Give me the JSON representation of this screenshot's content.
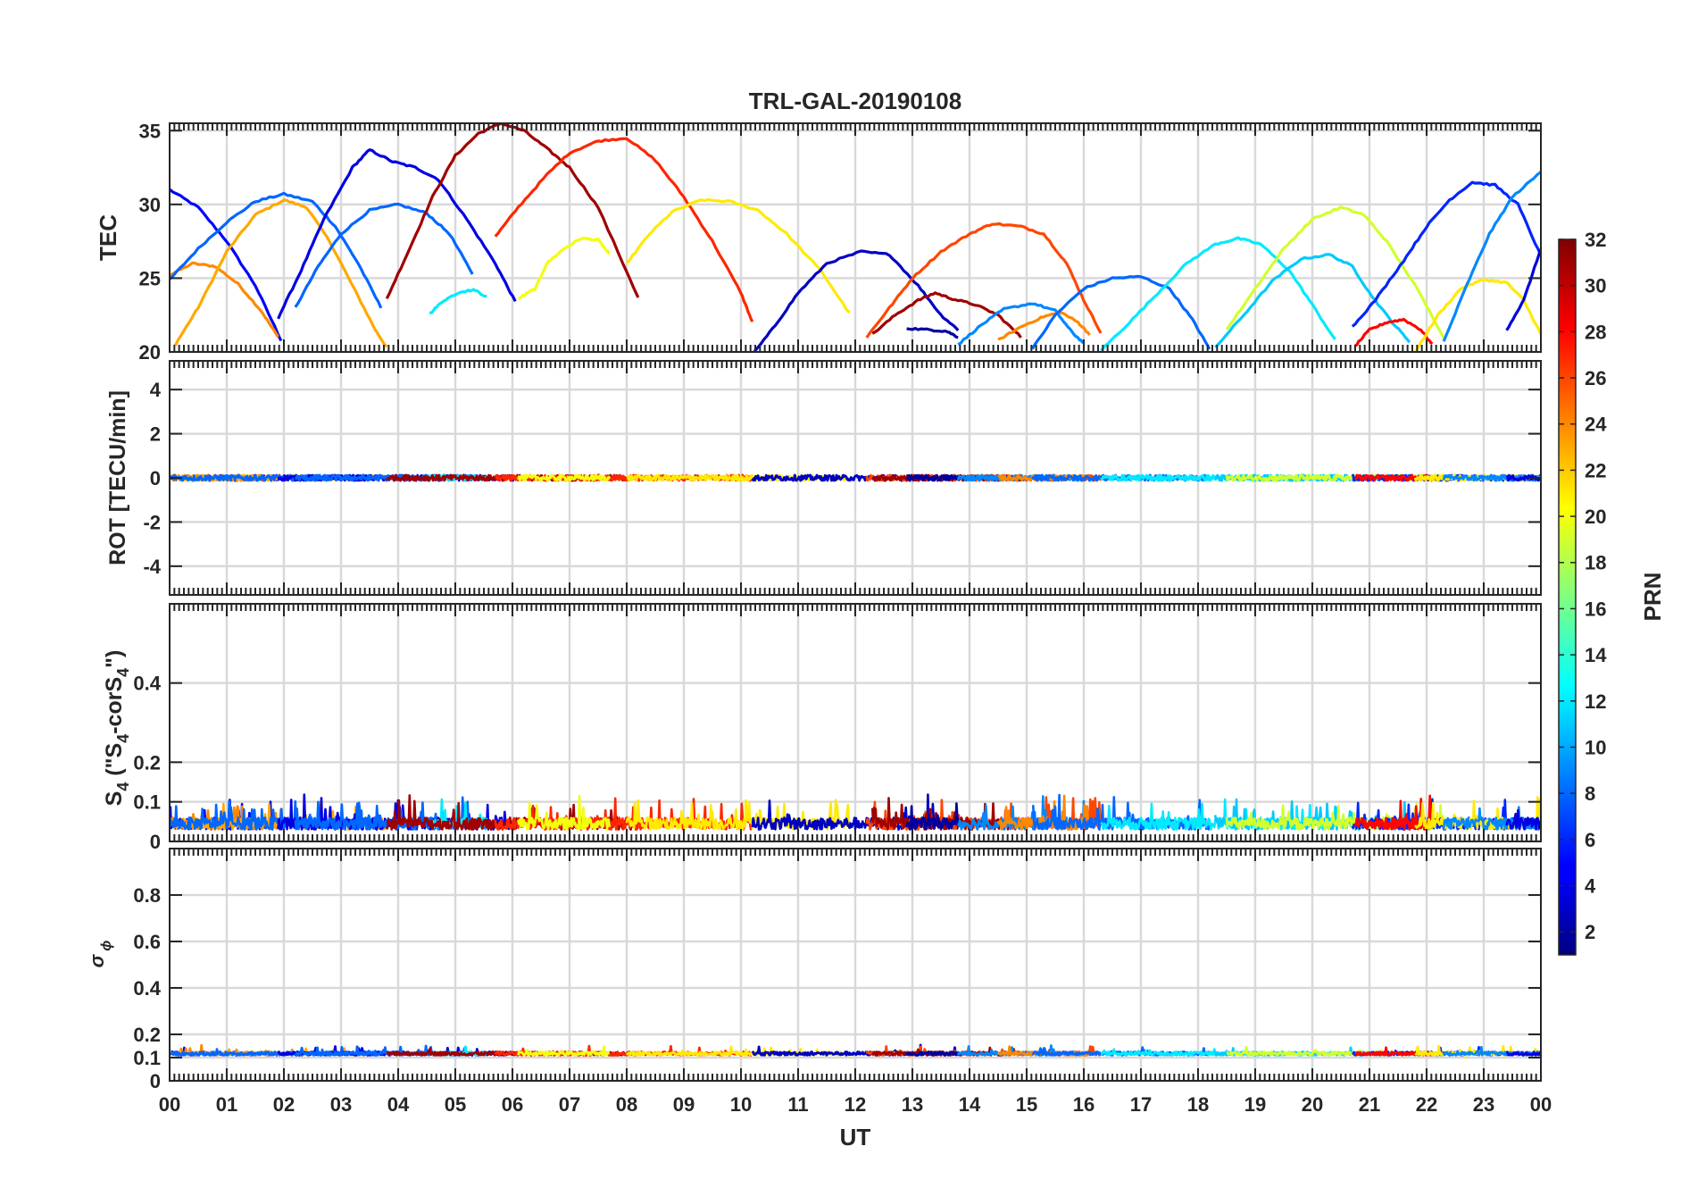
{
  "chart_data": {
    "title": "TRL-GAL-20190108",
    "xlabel": "UT",
    "type": "line",
    "xlim": [
      0,
      24
    ],
    "x_tick_labels": [
      "00",
      "01",
      "02",
      "03",
      "04",
      "05",
      "06",
      "07",
      "08",
      "09",
      "10",
      "11",
      "12",
      "13",
      "14",
      "15",
      "16",
      "17",
      "18",
      "19",
      "20",
      "21",
      "22",
      "23",
      "00"
    ],
    "panels": [
      {
        "ylabel": "TEC",
        "ylim": [
          20,
          35.5
        ],
        "yticks": [
          20,
          25,
          30,
          35
        ],
        "ytick_labels": [
          "20",
          "25",
          "30",
          "35"
        ]
      },
      {
        "ylabel": "ROT [TECU/min]",
        "ylim": [
          -5.3,
          5.3
        ],
        "yticks": [
          -4,
          -2,
          0,
          2,
          4
        ],
        "ytick_labels": [
          "-4",
          "-2",
          "0",
          "2",
          "4"
        ]
      },
      {
        "ylabel_main": "S",
        "ylabel_sub": "4",
        "ylabel_rest": " (\"S",
        "ylabel_sub2": "4",
        "ylabel_rest2": "-corS",
        "ylabel_sub3": "4",
        "ylabel_end": "\")",
        "ylim": [
          0,
          0.6
        ],
        "yticks": [
          0,
          0.1,
          0.2,
          0.4
        ],
        "ytick_labels": [
          "0",
          "0.1",
          "0.2",
          "0.4"
        ]
      },
      {
        "ylabel_main": "σ",
        "ylabel_sub": "ϕ",
        "ylim": [
          0,
          1
        ],
        "yticks": [
          0,
          0.1,
          0.2,
          0.4,
          0.6,
          0.8
        ],
        "ytick_labels": [
          "0",
          "0.1",
          "0.2",
          "0.4",
          "0.6",
          "0.8"
        ]
      }
    ],
    "colorbar": {
      "label": "PRN",
      "range": [
        1,
        32
      ],
      "tick_labels": [
        "2",
        "4",
        "6",
        "8",
        "10",
        "12",
        "14",
        "16",
        "18",
        "20",
        "22",
        "24",
        "26",
        "28",
        "30",
        "32"
      ],
      "ticks": [
        2,
        4,
        6,
        8,
        10,
        12,
        14,
        16,
        18,
        20,
        22,
        24,
        26,
        28,
        30,
        32
      ]
    },
    "tec_arcs": [
      {
        "prn": 5,
        "points": [
          [
            0.0,
            31.0
          ],
          [
            0.5,
            29.8
          ],
          [
            1.0,
            27.5
          ],
          [
            1.5,
            24.5
          ],
          [
            1.95,
            20.8
          ]
        ]
      },
      {
        "prn": 24,
        "points": [
          [
            0.0,
            25.2
          ],
          [
            0.4,
            26.0
          ],
          [
            0.8,
            25.8
          ],
          [
            1.2,
            24.6
          ],
          [
            1.6,
            22.8
          ],
          [
            1.9,
            21.0
          ]
        ]
      },
      {
        "prn": 23,
        "points": [
          [
            0.1,
            20.5
          ],
          [
            0.5,
            23.0
          ],
          [
            1.0,
            26.8
          ],
          [
            1.5,
            29.3
          ],
          [
            2.0,
            30.3
          ],
          [
            2.4,
            29.8
          ],
          [
            2.8,
            27.5
          ],
          [
            3.2,
            24.5
          ],
          [
            3.6,
            21.5
          ],
          [
            3.8,
            20.3
          ]
        ]
      },
      {
        "prn": 8,
        "points": [
          [
            0.0,
            24.9
          ],
          [
            0.5,
            27.0
          ],
          [
            1.0,
            28.8
          ],
          [
            1.5,
            30.2
          ],
          [
            2.0,
            30.7
          ],
          [
            2.5,
            30.2
          ],
          [
            2.9,
            28.5
          ],
          [
            3.3,
            26.0
          ],
          [
            3.7,
            23.0
          ]
        ]
      },
      {
        "prn": 4,
        "points": [
          [
            1.9,
            22.3
          ],
          [
            2.3,
            25.5
          ],
          [
            2.7,
            29.0
          ],
          [
            3.2,
            32.5
          ],
          [
            3.5,
            33.7
          ],
          [
            3.9,
            32.9
          ],
          [
            4.3,
            32.5
          ],
          [
            4.7,
            31.7
          ],
          [
            5.2,
            29.0
          ],
          [
            5.7,
            26.0
          ],
          [
            6.05,
            23.4
          ]
        ]
      },
      {
        "prn": 8,
        "points": [
          [
            2.2,
            23.0
          ],
          [
            2.6,
            25.8
          ],
          [
            3.0,
            28.0
          ],
          [
            3.5,
            29.6
          ],
          [
            4.0,
            30.0
          ],
          [
            4.5,
            29.4
          ],
          [
            4.9,
            28.0
          ],
          [
            5.3,
            25.3
          ]
        ]
      },
      {
        "prn": 12,
        "points": [
          [
            4.55,
            22.6
          ],
          [
            4.8,
            23.5
          ],
          [
            5.1,
            24.1
          ],
          [
            5.35,
            24.2
          ],
          [
            5.55,
            23.7
          ]
        ]
      },
      {
        "prn": 31,
        "points": [
          [
            3.8,
            23.6
          ],
          [
            4.2,
            27.0
          ],
          [
            4.6,
            30.5
          ],
          [
            5.0,
            33.3
          ],
          [
            5.4,
            34.8
          ],
          [
            5.8,
            35.5
          ],
          [
            6.2,
            35.0
          ],
          [
            6.6,
            33.8
          ],
          [
            7.0,
            32.5
          ],
          [
            7.5,
            29.8
          ],
          [
            8.2,
            23.7
          ]
        ]
      },
      {
        "prn": 27,
        "points": [
          [
            5.7,
            27.8
          ],
          [
            6.1,
            29.8
          ],
          [
            6.6,
            32.0
          ],
          [
            7.0,
            33.5
          ],
          [
            7.5,
            34.3
          ],
          [
            8.0,
            34.5
          ],
          [
            8.5,
            33.0
          ],
          [
            9.0,
            30.5
          ],
          [
            9.5,
            27.5
          ],
          [
            10.0,
            24.0
          ],
          [
            10.2,
            22.0
          ]
        ]
      },
      {
        "prn": 20,
        "points": [
          [
            6.1,
            23.6
          ],
          [
            6.4,
            24.3
          ],
          [
            6.6,
            26.0
          ],
          [
            6.9,
            27.0
          ],
          [
            7.2,
            27.7
          ],
          [
            7.5,
            27.6
          ],
          [
            7.7,
            26.6
          ]
        ]
      },
      {
        "prn": 21,
        "points": [
          [
            8.0,
            26.0
          ],
          [
            8.4,
            28.0
          ],
          [
            8.8,
            29.5
          ],
          [
            9.3,
            30.3
          ],
          [
            9.8,
            30.2
          ],
          [
            10.3,
            29.6
          ],
          [
            10.8,
            28.0
          ],
          [
            11.4,
            25.5
          ],
          [
            11.9,
            22.6
          ]
        ]
      },
      {
        "prn": 3,
        "points": [
          [
            10.2,
            19.8
          ],
          [
            10.6,
            21.8
          ],
          [
            11.0,
            24.0
          ],
          [
            11.5,
            26.0
          ],
          [
            12.1,
            26.8
          ],
          [
            12.6,
            26.6
          ],
          [
            13.1,
            24.5
          ],
          [
            13.5,
            22.5
          ],
          [
            13.8,
            21.5
          ]
        ]
      },
      {
        "prn": 26,
        "points": [
          [
            12.2,
            21.0
          ],
          [
            12.6,
            23.0
          ],
          [
            13.0,
            25.0
          ],
          [
            13.5,
            26.8
          ],
          [
            14.0,
            28.0
          ],
          [
            14.4,
            28.7
          ],
          [
            14.9,
            28.5
          ],
          [
            15.3,
            28.0
          ],
          [
            15.7,
            26.0
          ],
          [
            16.0,
            23.5
          ],
          [
            16.3,
            21.3
          ]
        ]
      },
      {
        "prn": 31,
        "points": [
          [
            12.3,
            21.2
          ],
          [
            12.7,
            22.5
          ],
          [
            13.1,
            23.5
          ],
          [
            13.4,
            24.0
          ],
          [
            13.7,
            23.6
          ],
          [
            14.1,
            23.2
          ],
          [
            14.5,
            22.5
          ],
          [
            14.9,
            21.0
          ]
        ]
      },
      {
        "prn": 2,
        "points": [
          [
            12.9,
            21.6
          ],
          [
            13.3,
            21.5
          ],
          [
            13.6,
            21.4
          ],
          [
            13.8,
            21.0
          ]
        ]
      },
      {
        "prn": 9,
        "points": [
          [
            13.8,
            20.5
          ],
          [
            14.2,
            21.8
          ],
          [
            14.6,
            22.9
          ],
          [
            15.1,
            23.3
          ],
          [
            15.5,
            22.8
          ],
          [
            15.8,
            21.3
          ],
          [
            16.0,
            20.6
          ]
        ]
      },
      {
        "prn": 24,
        "points": [
          [
            14.5,
            20.8
          ],
          [
            14.9,
            21.7
          ],
          [
            15.3,
            22.4
          ],
          [
            15.6,
            22.7
          ],
          [
            15.9,
            22.0
          ],
          [
            16.1,
            21.2
          ]
        ]
      },
      {
        "prn": 8,
        "points": [
          [
            15.1,
            20.2
          ],
          [
            15.5,
            22.5
          ],
          [
            16.0,
            24.3
          ],
          [
            16.5,
            25.0
          ],
          [
            17.0,
            25.1
          ],
          [
            17.5,
            24.3
          ],
          [
            17.9,
            22.2
          ],
          [
            18.2,
            20.2
          ]
        ]
      },
      {
        "prn": 12,
        "points": [
          [
            16.3,
            20.1
          ],
          [
            16.8,
            22.0
          ],
          [
            17.3,
            24.0
          ],
          [
            17.8,
            26.0
          ],
          [
            18.3,
            27.3
          ],
          [
            18.7,
            27.7
          ],
          [
            19.1,
            27.3
          ],
          [
            19.6,
            25.5
          ],
          [
            20.0,
            23.2
          ],
          [
            20.4,
            20.8
          ]
        ]
      },
      {
        "prn": 11,
        "points": [
          [
            18.3,
            20.3
          ],
          [
            18.8,
            22.5
          ],
          [
            19.3,
            24.8
          ],
          [
            19.8,
            26.3
          ],
          [
            20.3,
            26.6
          ],
          [
            20.7,
            25.8
          ],
          [
            21.0,
            24.0
          ],
          [
            21.4,
            22.0
          ],
          [
            21.7,
            20.7
          ]
        ]
      },
      {
        "prn": 19,
        "points": [
          [
            18.5,
            21.5
          ],
          [
            19.0,
            24.3
          ],
          [
            19.5,
            27.0
          ],
          [
            20.0,
            29.0
          ],
          [
            20.5,
            29.8
          ],
          [
            20.9,
            29.3
          ],
          [
            21.3,
            27.5
          ],
          [
            21.8,
            24.5
          ],
          [
            22.3,
            21.0
          ]
        ]
      },
      {
        "prn": 6,
        "points": [
          [
            20.7,
            21.7
          ],
          [
            21.1,
            23.5
          ],
          [
            21.6,
            26.2
          ],
          [
            22.0,
            28.5
          ],
          [
            22.4,
            30.3
          ],
          [
            22.8,
            31.5
          ],
          [
            23.2,
            31.3
          ],
          [
            23.6,
            30.0
          ],
          [
            24.0,
            26.5
          ]
        ]
      },
      {
        "prn": 28,
        "points": [
          [
            20.75,
            20.4
          ],
          [
            21.0,
            21.5
          ],
          [
            21.3,
            22.0
          ],
          [
            21.6,
            22.2
          ],
          [
            21.9,
            21.5
          ],
          [
            22.1,
            20.5
          ]
        ]
      },
      {
        "prn": 21,
        "points": [
          [
            21.8,
            20.0
          ],
          [
            22.2,
            22.5
          ],
          [
            22.6,
            24.3
          ],
          [
            23.0,
            24.9
          ],
          [
            23.4,
            24.7
          ],
          [
            23.7,
            23.5
          ],
          [
            24.0,
            21.2
          ]
        ]
      },
      {
        "prn": 9,
        "points": [
          [
            22.3,
            20.7
          ],
          [
            22.7,
            24.5
          ],
          [
            23.1,
            28.0
          ],
          [
            23.5,
            30.5
          ],
          [
            24.0,
            32.2
          ]
        ]
      },
      {
        "prn": 4,
        "points": [
          [
            23.4,
            21.5
          ],
          [
            23.7,
            23.5
          ],
          [
            24.0,
            27.0
          ]
        ]
      }
    ]
  }
}
